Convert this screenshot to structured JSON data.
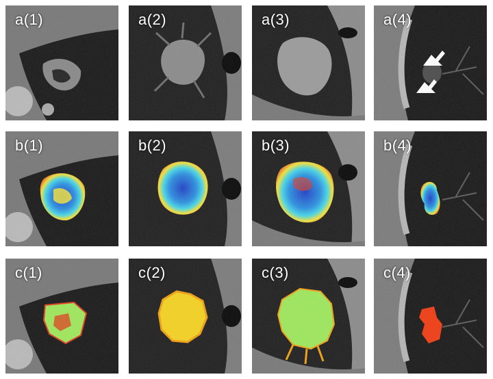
{
  "panels": {
    "a1": "a(1)",
    "a2": "a(2)",
    "a3": "a(3)",
    "a4": "a(4)",
    "b1": "b(1)",
    "b2": "b(2)",
    "b3": "b(3)",
    "b4": "b(4)",
    "c1": "c(1)",
    "c2": "c(2)",
    "c3": "c(3)",
    "c4": "c(4)"
  },
  "colors": {
    "ct_tissue": "#7d7d7d",
    "ct_lung": "#161616",
    "bone": "#b9b9b9",
    "heat_blue": "#1f5fd6",
    "heat_cyan": "#3fd6e6",
    "heat_yellow": "#f2e23a",
    "heat_red": "#e23a1a",
    "seg_green": "#9ee85a",
    "seg_yellow": "#f5d21e",
    "seg_red": "#f03a10"
  }
}
